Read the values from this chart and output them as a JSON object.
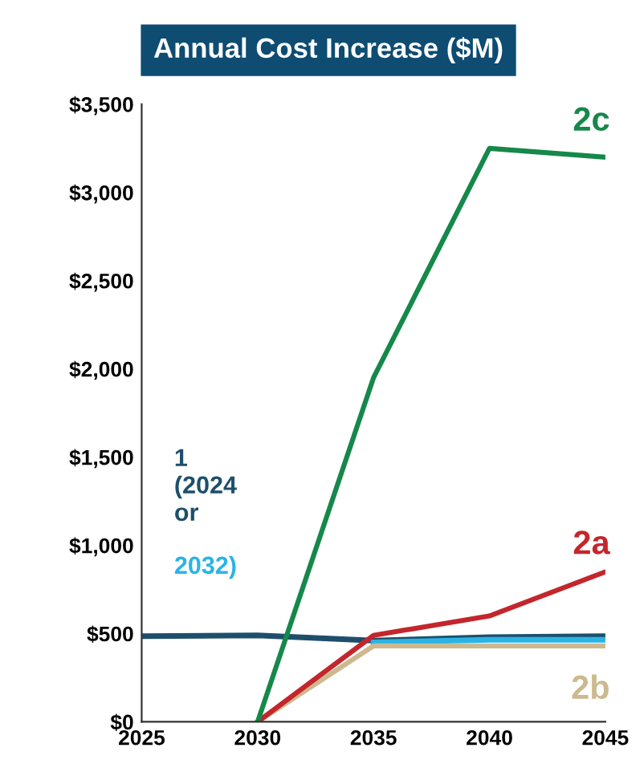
{
  "chart_data": {
    "type": "line",
    "title": "Annual Cost Increase ($M)",
    "xlim": [
      2025,
      2045
    ],
    "xticks": [
      2025,
      2030,
      2035,
      2040,
      2045
    ],
    "ylim": [
      0,
      3500
    ],
    "yticks": [
      {
        "value": 0,
        "label": "$0"
      },
      {
        "value": 500,
        "label": "$500"
      },
      {
        "value": 1000,
        "label": "$1,000"
      },
      {
        "value": 1500,
        "label": "$1,500"
      },
      {
        "value": 2000,
        "label": "$2,000"
      },
      {
        "value": 2500,
        "label": "$2,500"
      },
      {
        "value": 3000,
        "label": "$3,000"
      },
      {
        "value": 3500,
        "label": "$3,500"
      }
    ],
    "grid": false,
    "legend": false,
    "marker": "none",
    "line_style": "solid",
    "series": [
      {
        "name": "1\n(2024\nor",
        "color": "#1d4f6b",
        "x": [
          2025,
          2030,
          2035,
          2040,
          2045
        ],
        "values": [
          485,
          490,
          460,
          480,
          485
        ]
      },
      {
        "name": "2032)",
        "color": "#2ab4e6",
        "x": [
          2035,
          2040,
          2045
        ],
        "values": [
          450,
          465,
          465
        ]
      },
      {
        "name": "2b",
        "color": "#cdb98f",
        "x": [
          2030,
          2035,
          2040,
          2045
        ],
        "values": [
          0,
          430,
          430,
          430
        ]
      },
      {
        "name": "2a",
        "color": "#c3262c",
        "x": [
          2030,
          2035,
          2040,
          2045
        ],
        "values": [
          0,
          490,
          600,
          850
        ]
      },
      {
        "name": "2c",
        "color": "#15884a",
        "x": [
          2030,
          2035,
          2040,
          2045
        ],
        "values": [
          0,
          1950,
          3250,
          3200
        ]
      }
    ]
  }
}
